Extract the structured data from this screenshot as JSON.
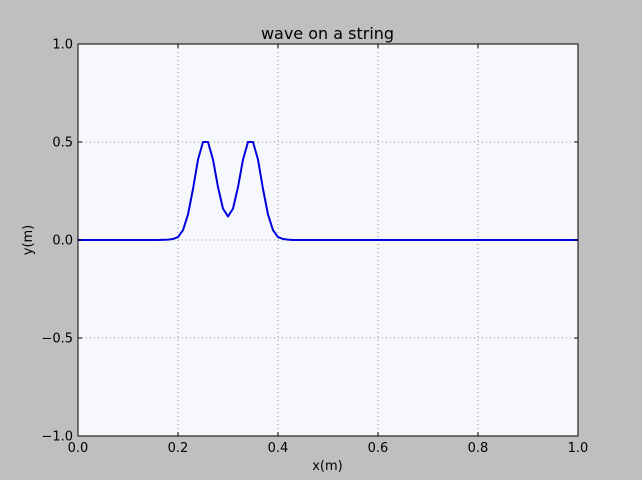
{
  "chart_data": {
    "type": "line",
    "title": "wave on a string",
    "xlabel": "x(m)",
    "ylabel": "y(m)",
    "xlim": [
      0.0,
      1.0
    ],
    "ylim": [
      -1.0,
      1.0
    ],
    "xticks": [
      0.0,
      0.2,
      0.4,
      0.6,
      0.8,
      1.0
    ],
    "xtick_labels": [
      "0.0",
      "0.2",
      "0.4",
      "0.6",
      "0.8",
      "1.0"
    ],
    "yticks": [
      -1.0,
      -0.5,
      0.0,
      0.5,
      1.0
    ],
    "ytick_labels": [
      "−1.0",
      "−0.5",
      "0.0",
      "0.5",
      "1.0"
    ],
    "grid": true,
    "colors": {
      "line": "#0000dd",
      "plot_background": "#f7f8fe",
      "figure_background": "#bfbfbf",
      "grid": "#8a8a8a"
    },
    "series": [
      {
        "x": [
          0.0,
          0.16,
          0.18,
          0.19,
          0.2,
          0.21,
          0.22,
          0.23,
          0.24,
          0.25,
          0.26,
          0.27,
          0.28,
          0.29,
          0.3,
          0.31,
          0.32,
          0.33,
          0.34,
          0.35,
          0.36,
          0.37,
          0.38,
          0.39,
          0.4,
          0.41,
          0.42,
          0.43,
          0.44,
          1.0
        ],
        "y": [
          0.0,
          0.0,
          0.002,
          0.005,
          0.015,
          0.05,
          0.13,
          0.26,
          0.41,
          0.5,
          0.5,
          0.41,
          0.27,
          0.16,
          0.12,
          0.16,
          0.27,
          0.41,
          0.5,
          0.5,
          0.41,
          0.26,
          0.13,
          0.05,
          0.015,
          0.005,
          0.002,
          0.0,
          0.0,
          0.0
        ]
      }
    ]
  }
}
